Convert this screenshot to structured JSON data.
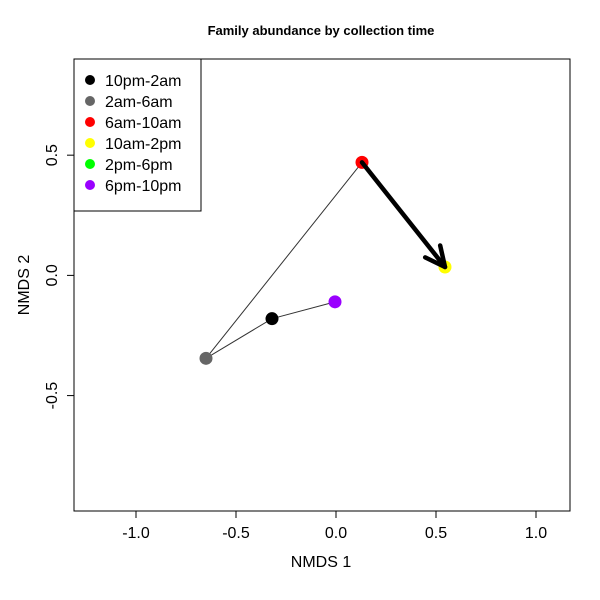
{
  "chart_data": {
    "type": "scatter",
    "title": "Family abundance by collection time",
    "xlabel": "NMDS 1",
    "ylabel": "NMDS 2",
    "xlim": [
      -1.31,
      1.17
    ],
    "ylim": [
      -0.98,
      0.9
    ],
    "x_ticks": [
      -1.0,
      -0.5,
      0.0,
      0.5,
      1.0
    ],
    "x_tick_labels": [
      "-1.0",
      "-0.5",
      "0.0",
      "0.5",
      "1.0"
    ],
    "y_ticks": [
      -0.5,
      0.0,
      0.5
    ],
    "y_tick_labels": [
      "-0.5",
      "0.0",
      "0.5"
    ],
    "grid": false,
    "legend_position": "top-left",
    "points": [
      {
        "name": "10pm-2am",
        "x": -0.32,
        "y": -0.18,
        "color": "#000000"
      },
      {
        "name": "2am-6am",
        "x": -0.65,
        "y": -0.345,
        "color": "#666666"
      },
      {
        "name": "6am-10am",
        "x": 0.13,
        "y": 0.47,
        "color": "#ff0000"
      },
      {
        "name": "10am-2pm",
        "x": 0.545,
        "y": 0.035,
        "color": "#ffff00"
      },
      {
        "name": "2pm-6pm",
        "x": null,
        "y": null,
        "color": "#00ff00"
      },
      {
        "name": "6pm-10pm",
        "x": -0.005,
        "y": -0.11,
        "color": "#9a00ff"
      }
    ],
    "path_order": [
      "6pm-10pm",
      "10pm-2am",
      "2am-6am",
      "6am-10am"
    ],
    "arrow": {
      "from": "6am-10am",
      "to": "10am-2pm"
    }
  }
}
